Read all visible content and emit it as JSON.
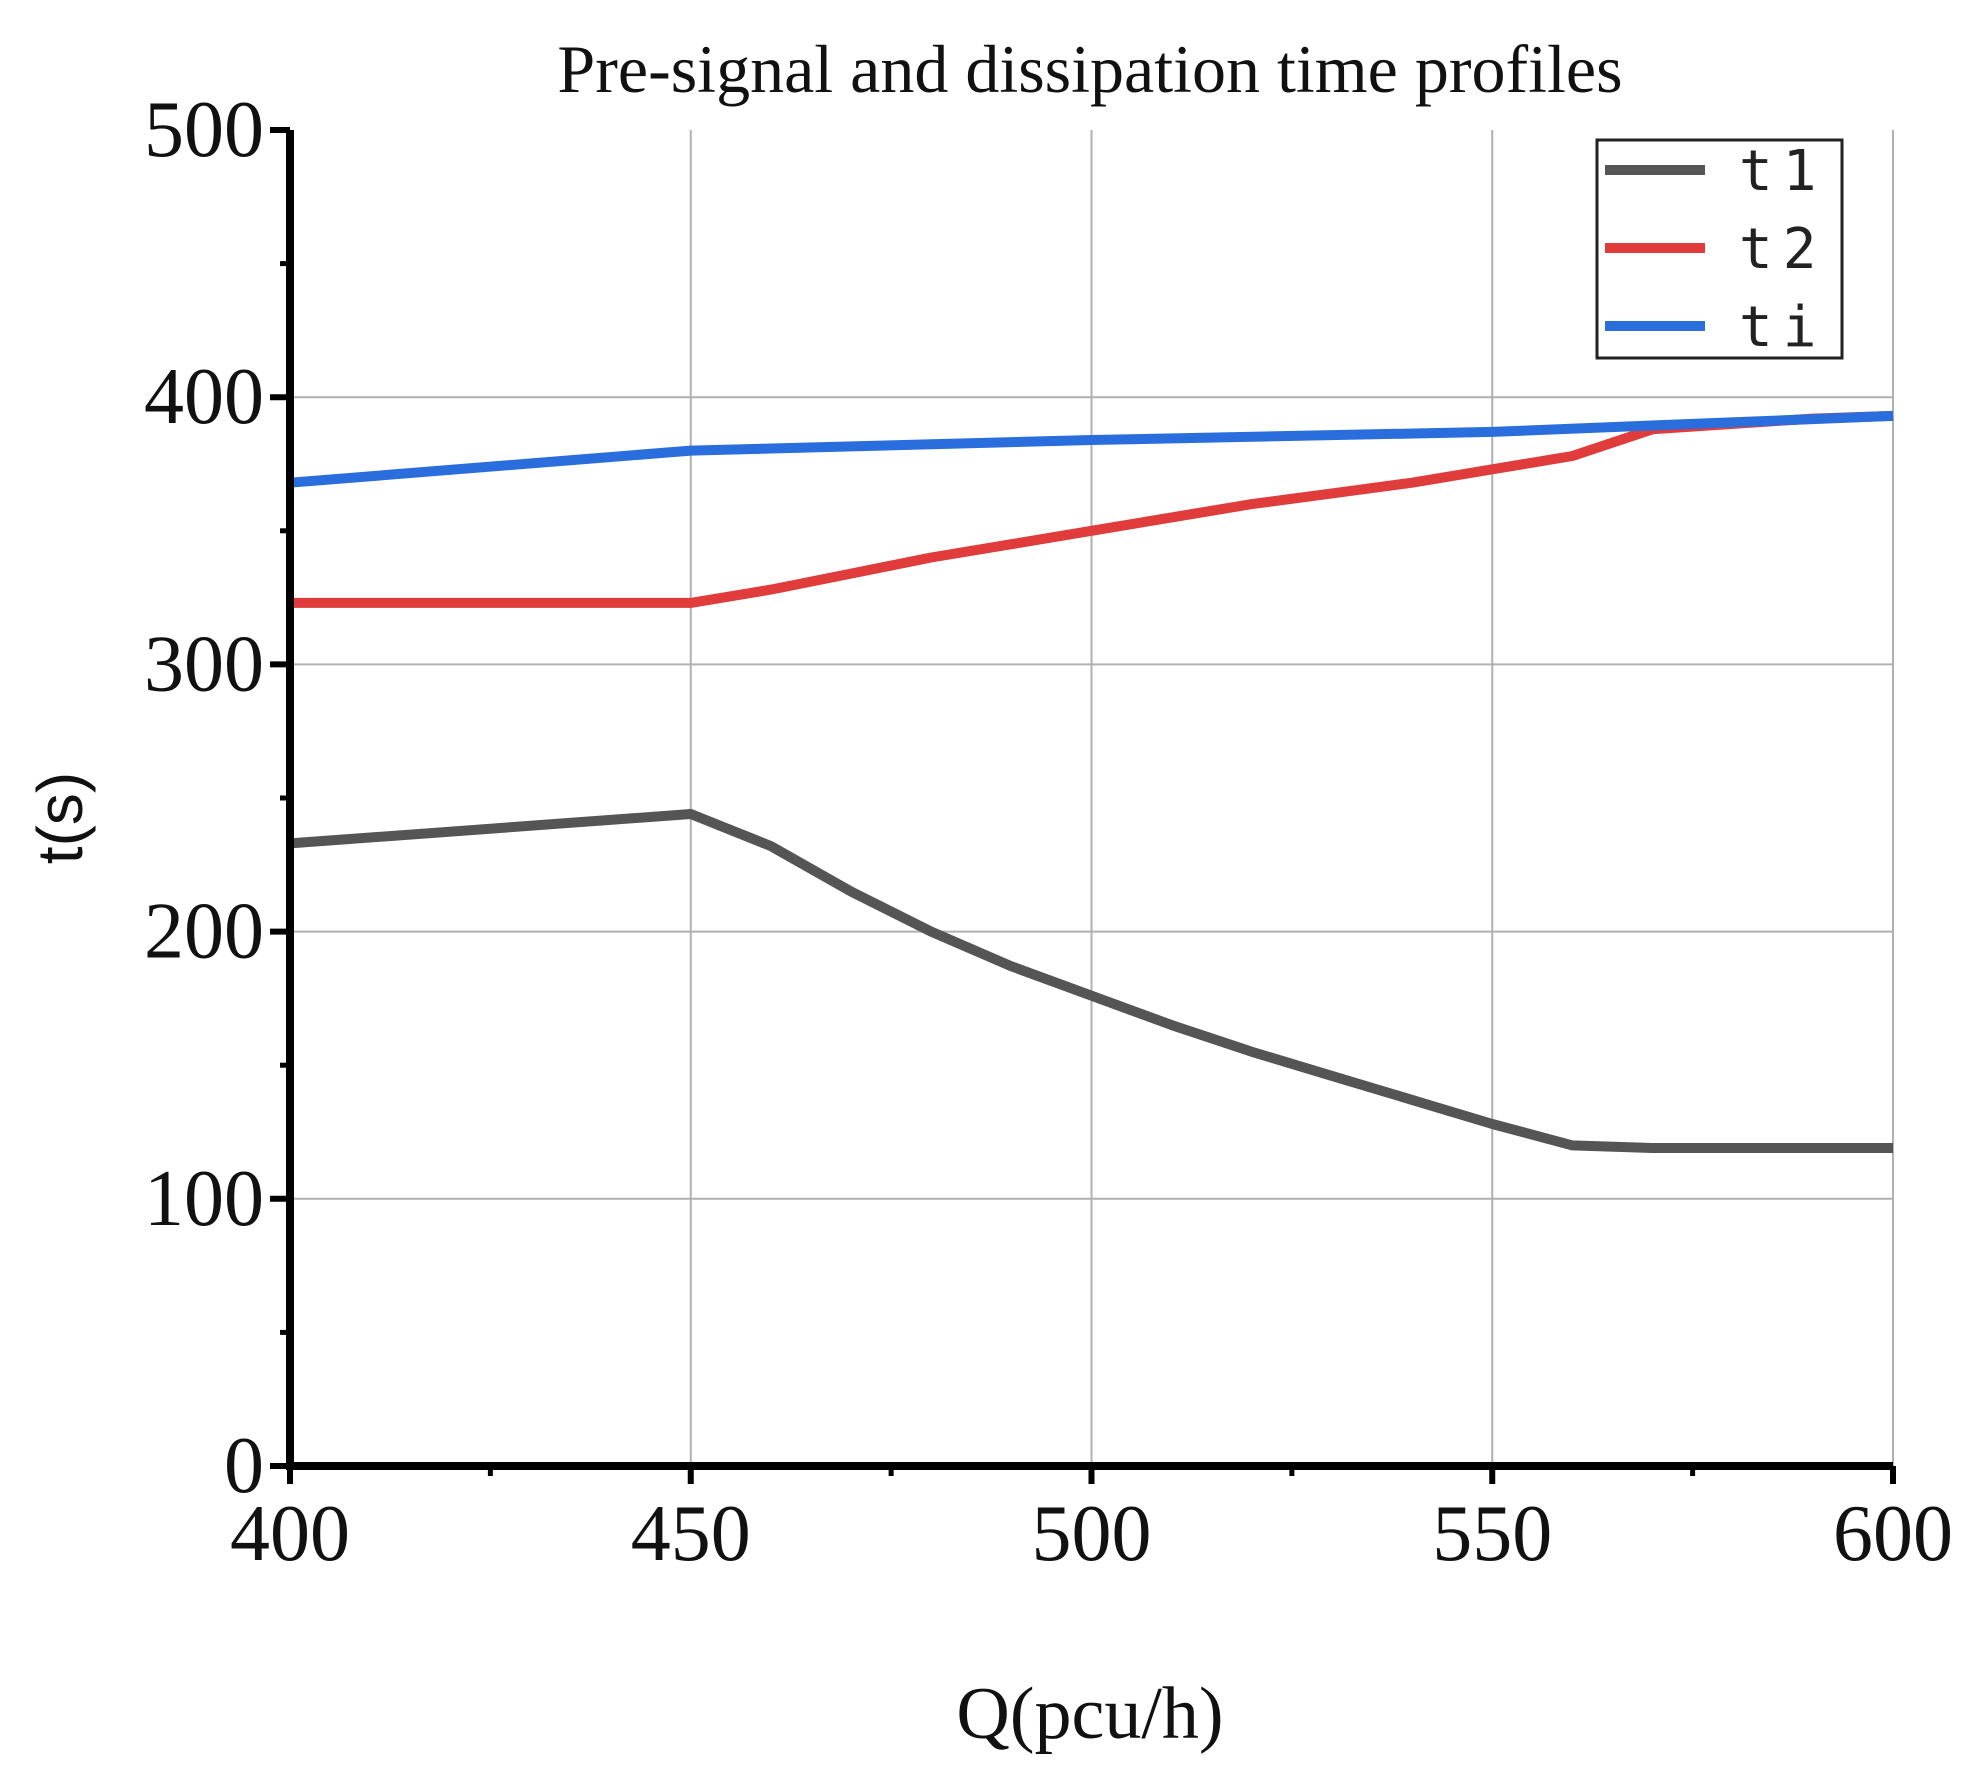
{
  "chart_data": {
    "type": "line",
    "title": "Pre-signal and dissipation time profiles",
    "xlabel": "Q(pcu/h)",
    "ylabel": "t(s)",
    "xlim": [
      400,
      600
    ],
    "ylim": [
      0,
      500
    ],
    "xticks": [
      400,
      450,
      500,
      550,
      600
    ],
    "yticks": [
      0,
      100,
      200,
      300,
      400,
      500
    ],
    "grid": true,
    "legend_position": "top-right",
    "series": [
      {
        "name": "t1",
        "color": "#555555",
        "x": [
          400,
          450,
          460,
          470,
          480,
          490,
          500,
          510,
          520,
          530,
          540,
          550,
          560,
          570,
          580,
          590,
          600
        ],
        "y": [
          233,
          244,
          232,
          215,
          200,
          187,
          176,
          165,
          155,
          146,
          137,
          128,
          120,
          119,
          119,
          119,
          119
        ]
      },
      {
        "name": "t2",
        "color": "#e03c3c",
        "x": [
          400,
          450,
          460,
          470,
          480,
          490,
          500,
          510,
          520,
          530,
          540,
          550,
          560,
          570,
          580,
          590,
          600
        ],
        "y": [
          323,
          323,
          328,
          334,
          340,
          345,
          350,
          355,
          360,
          364,
          368,
          373,
          378,
          388,
          390,
          392,
          393
        ]
      },
      {
        "name": "ti",
        "color": "#2a6ddc",
        "x": [
          400,
          450,
          500,
          550,
          600
        ],
        "y": [
          368,
          380,
          384,
          387,
          393
        ]
      }
    ]
  }
}
